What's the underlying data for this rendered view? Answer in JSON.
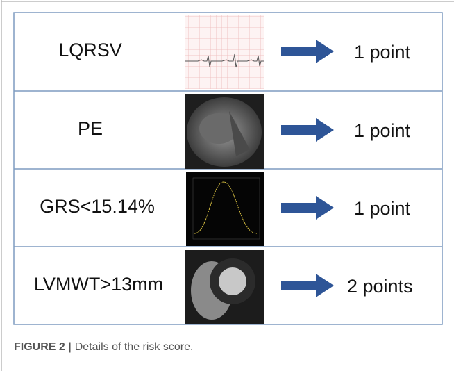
{
  "rows": [
    {
      "label": "LQRSV",
      "points": "1 point"
    },
    {
      "label": "PE",
      "points": "1 point"
    },
    {
      "label": "GRS<15.14%",
      "points": "1 point"
    },
    {
      "label": "LVMWT>13mm",
      "points": "2 points"
    }
  ],
  "caption": {
    "label": "FIGURE 2 |",
    "text": "Details of the risk score."
  }
}
